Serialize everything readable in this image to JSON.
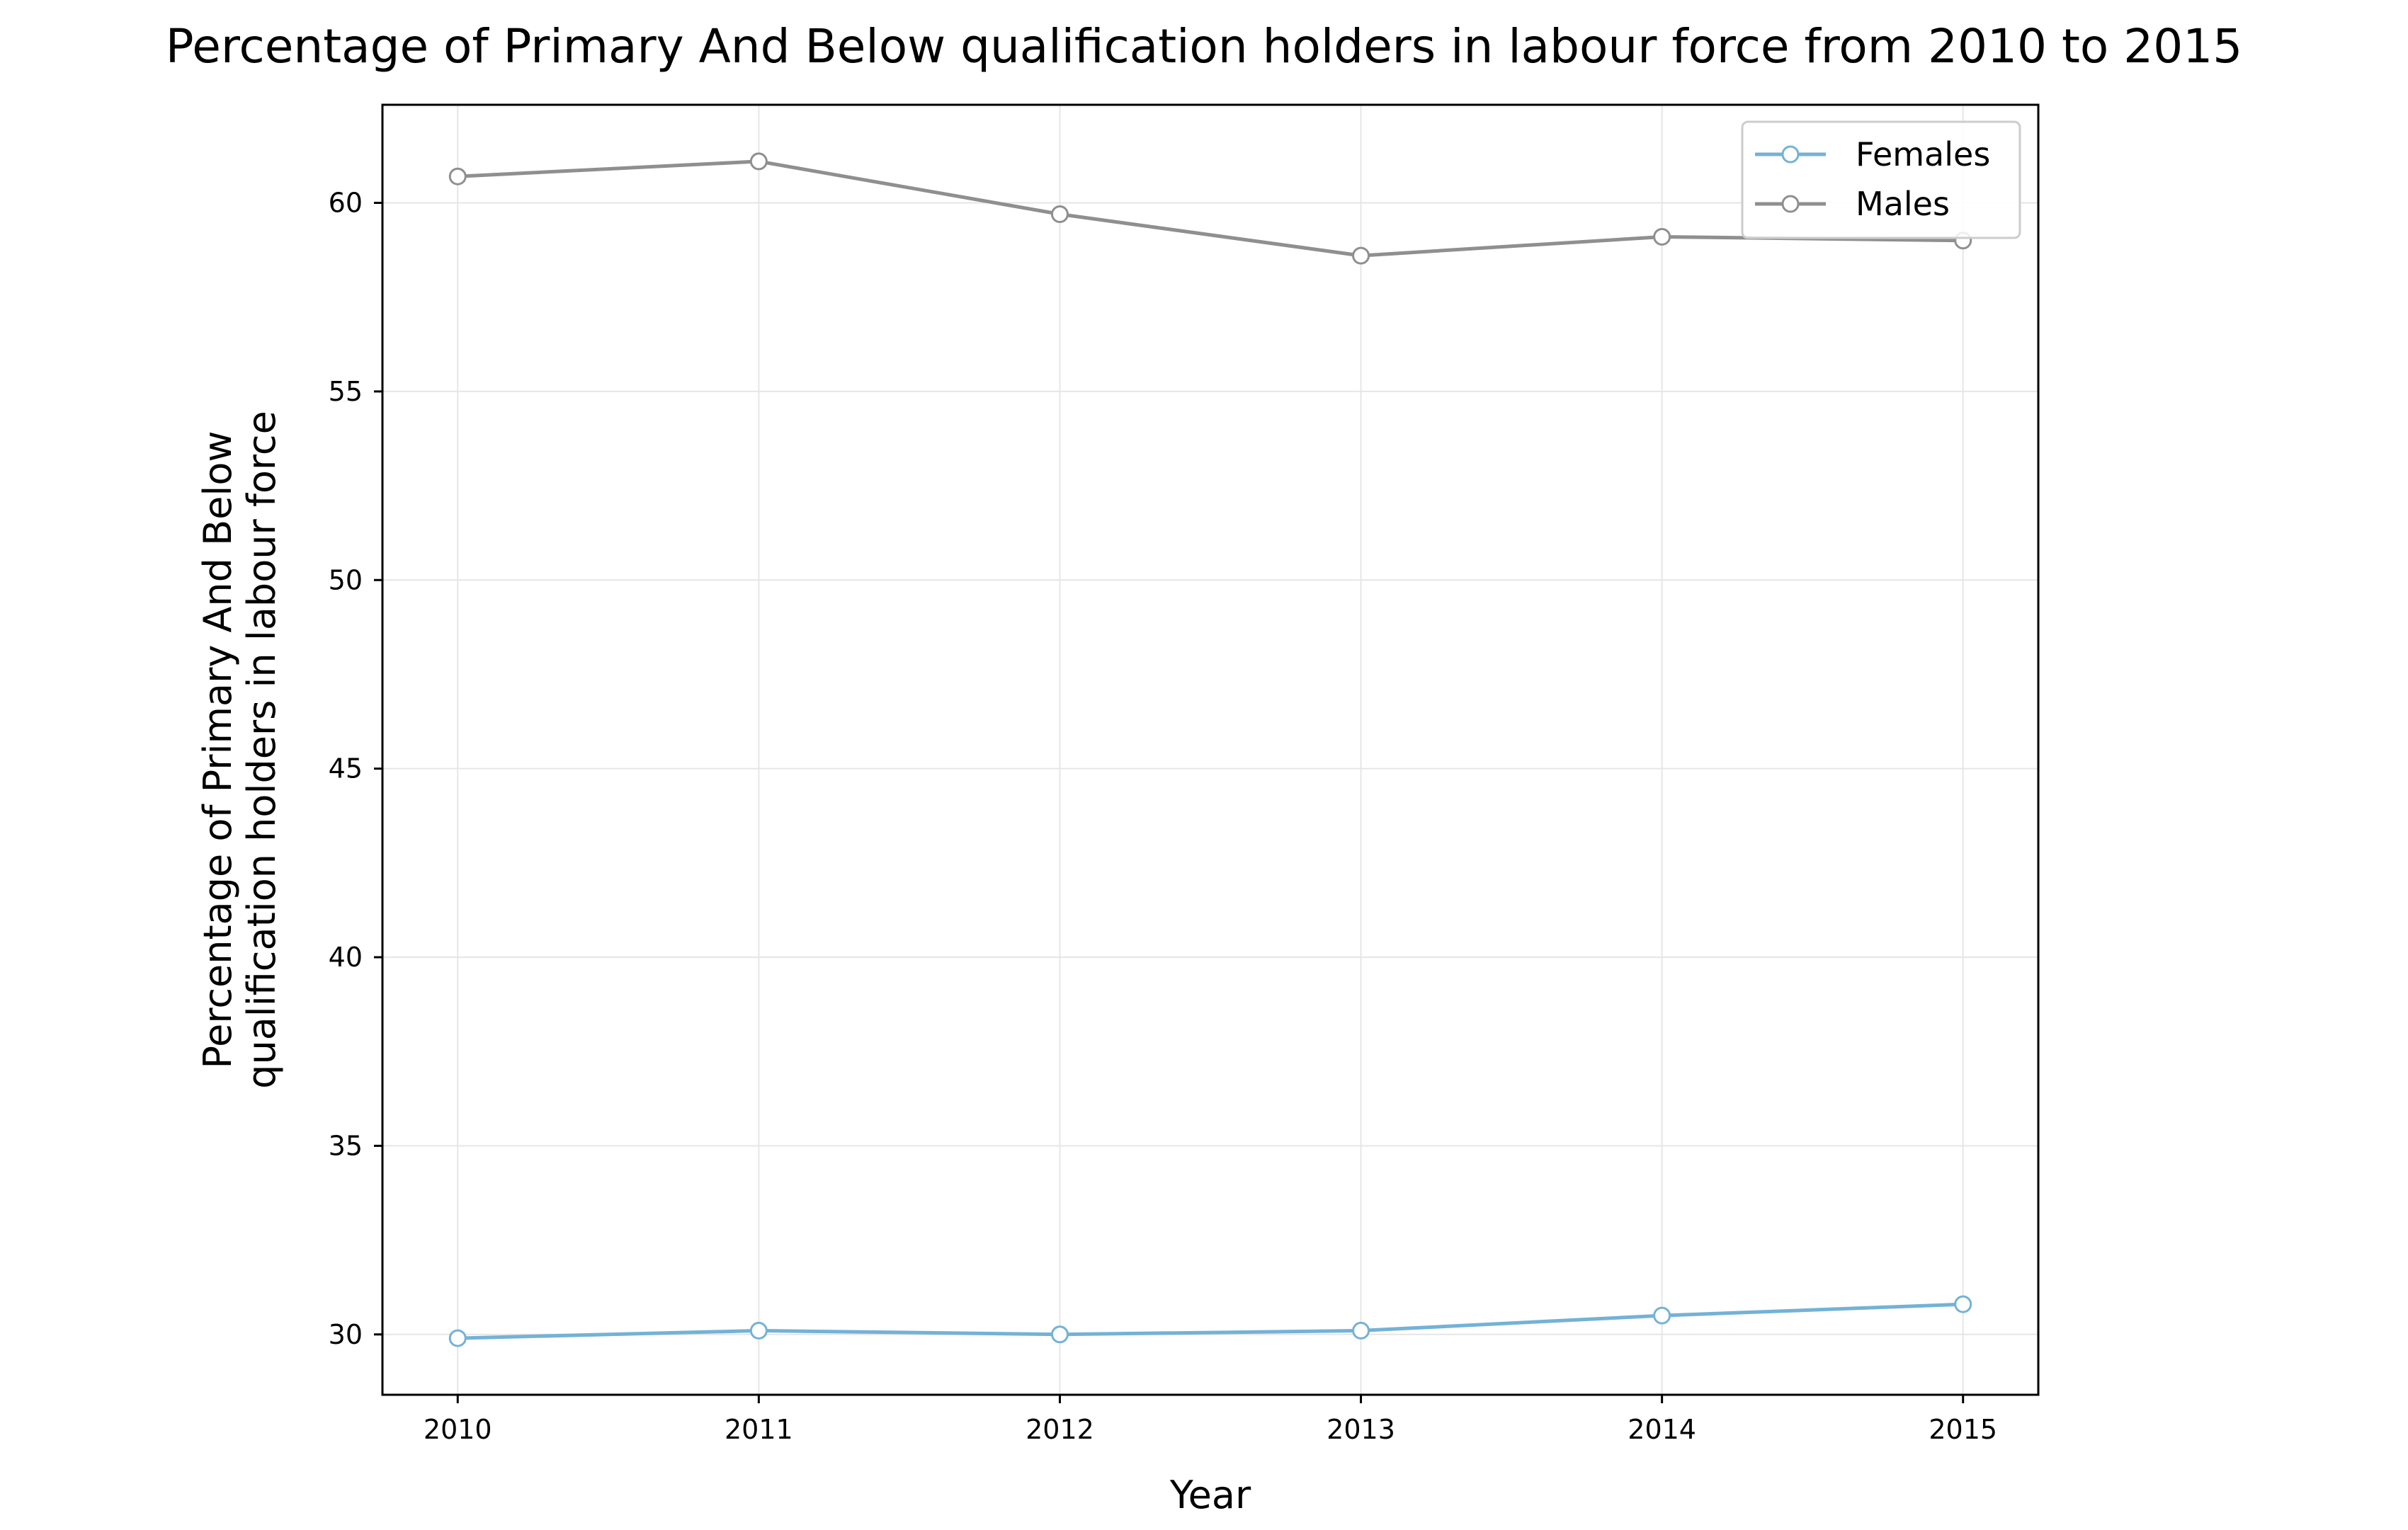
{
  "chart_data": {
    "type": "line",
    "title": "Percentage of Primary And Below qualification holders in labour force from 2010 to 2015",
    "xlabel": "Year",
    "ylabel_lines": [
      "Percentage of Primary And Below",
      "qualification holders in labour force"
    ],
    "x": [
      2010,
      2011,
      2012,
      2013,
      2014,
      2015
    ],
    "xticks": [
      "2010",
      "2011",
      "2012",
      "2013",
      "2014",
      "2015"
    ],
    "yticks": [
      30,
      35,
      40,
      45,
      50,
      55,
      60
    ],
    "xlim": [
      2009.75,
      2015.25
    ],
    "ylim": [
      28.4,
      62.6
    ],
    "grid": true,
    "legend_position": "top-right",
    "series": [
      {
        "name": "Females",
        "color": "#74b2d6",
        "values": [
          29.9,
          30.1,
          30.0,
          30.1,
          30.5,
          30.8
        ]
      },
      {
        "name": "Males",
        "color": "#8f8f8f",
        "values": [
          60.7,
          61.1,
          59.7,
          58.6,
          59.1,
          59.0
        ]
      }
    ]
  }
}
